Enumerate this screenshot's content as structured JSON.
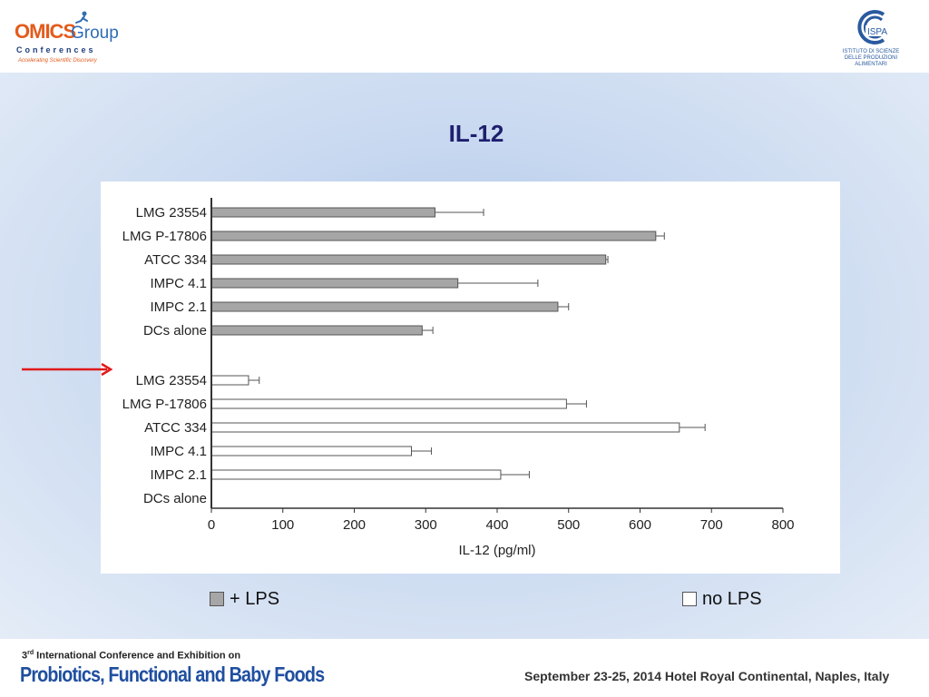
{
  "header": {
    "omics_logo": {
      "name": "OMICS",
      "group": "Group",
      "conferences": "Conferences",
      "tagline": "Accelerating Scientific Discovery"
    },
    "ispa_logo": {
      "acronym": "ISPA",
      "line1": "ISTITUTO DI SCIENZE",
      "line2": "DELLE PRODUZIONI",
      "line3": "ALIMENTARI"
    }
  },
  "slide": {
    "title": "IL-12"
  },
  "legend": {
    "lps_label": "+ LPS",
    "nolps_label": "no LPS",
    "lps_color": "#a6a6a6",
    "nolps_color": "#ffffff"
  },
  "chart_data": {
    "type": "bar",
    "orientation": "horizontal",
    "xlabel": "IL-12 (pg/ml)",
    "xlim": [
      0,
      800
    ],
    "xticks": [
      0,
      100,
      200,
      300,
      400,
      500,
      600,
      700,
      800
    ],
    "categories": [
      "LMG 23554",
      "LMG P-17806",
      "ATCC 334",
      "IMPC 4.1",
      "IMPC 2.1",
      "DCs alone"
    ],
    "series": [
      {
        "name": "+ LPS",
        "color": "#a6a6a6",
        "values": [
          313,
          622,
          552,
          345,
          485,
          295
        ],
        "errors": [
          68,
          12,
          3,
          112,
          15,
          15
        ]
      },
      {
        "name": "no LPS",
        "color": "#ffffff",
        "values": [
          52,
          497,
          655,
          280,
          405,
          0
        ],
        "errors": [
          15,
          28,
          36,
          28,
          40,
          0
        ]
      }
    ],
    "highlight": {
      "series": "no LPS",
      "category": "LMG 23554",
      "marker": "red-arrow"
    }
  },
  "footer": {
    "conf_ordinal": "3",
    "conf_sup": "rd",
    "conf_line": " International Conference and Exhibition on",
    "conf_title": "Probiotics, Functional and Baby Foods",
    "date_venue": "September 23-25, 2014   Hotel Royal Continental, Naples, Italy"
  }
}
